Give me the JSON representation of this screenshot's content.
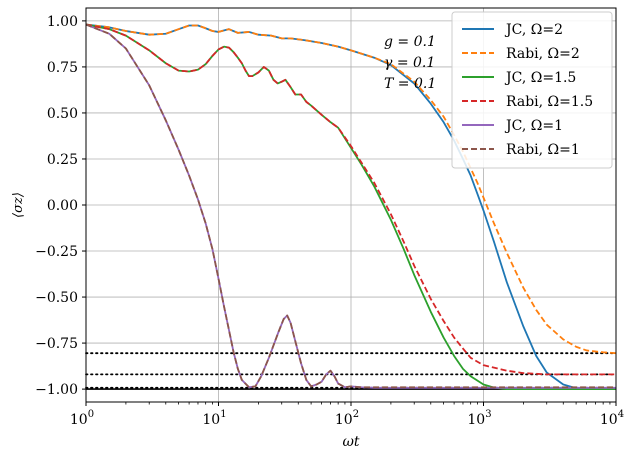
{
  "chart_data": {
    "type": "line",
    "xlabel": "ωt",
    "ylabel": "⟨σz⟩",
    "xscale": "log",
    "xlim": [
      1,
      10000
    ],
    "ylim": [
      -1.07,
      1.07
    ],
    "grid": true,
    "legend_position": "top-right",
    "x_ticks": [
      {
        "value": 1,
        "base": "10",
        "exp": "0"
      },
      {
        "value": 10,
        "base": "10",
        "exp": "1"
      },
      {
        "value": 100,
        "base": "10",
        "exp": "2"
      },
      {
        "value": 1000,
        "base": "10",
        "exp": "3"
      },
      {
        "value": 10000,
        "base": "10",
        "exp": "4"
      }
    ],
    "y_ticks": [
      {
        "value": 1.0,
        "label": "1.00"
      },
      {
        "value": 0.75,
        "label": "0.75"
      },
      {
        "value": 0.5,
        "label": "0.50"
      },
      {
        "value": 0.25,
        "label": "0.25"
      },
      {
        "value": 0.0,
        "label": "0.00"
      },
      {
        "value": -0.25,
        "label": "−0.25"
      },
      {
        "value": -0.5,
        "label": "−0.50"
      },
      {
        "value": -0.75,
        "label": "−0.75"
      },
      {
        "value": -1.0,
        "label": "−1.00"
      }
    ],
    "annotations": [
      "g = 0.1",
      "γ = 0.1",
      "T = 0.1"
    ],
    "reference_lines": [
      {
        "y": -0.805,
        "style": "dotted",
        "color": "#000000"
      },
      {
        "y": -0.92,
        "style": "dotted",
        "color": "#000000"
      },
      {
        "y": -0.993,
        "style": "dotted",
        "color": "#000000"
      },
      {
        "y": -1.0,
        "style": "solid",
        "color": "#000000"
      }
    ],
    "series": [
      {
        "name": "JC, Ω=2",
        "color": "#1f77b4",
        "dash": "solid",
        "points": [
          [
            1,
            0.98
          ],
          [
            1.5,
            0.965
          ],
          [
            2,
            0.945
          ],
          [
            3,
            0.925
          ],
          [
            4,
            0.93
          ],
          [
            5,
            0.955
          ],
          [
            6,
            0.975
          ],
          [
            7,
            0.975
          ],
          [
            8,
            0.96
          ],
          [
            9,
            0.945
          ],
          [
            10,
            0.94
          ],
          [
            12,
            0.955
          ],
          [
            14,
            0.935
          ],
          [
            17,
            0.94
          ],
          [
            20,
            0.925
          ],
          [
            25,
            0.92
          ],
          [
            30,
            0.905
          ],
          [
            35,
            0.905
          ],
          [
            45,
            0.895
          ],
          [
            60,
            0.88
          ],
          [
            80,
            0.86
          ],
          [
            100,
            0.84
          ],
          [
            150,
            0.8
          ],
          [
            200,
            0.76
          ],
          [
            300,
            0.66
          ],
          [
            400,
            0.55
          ],
          [
            500,
            0.45
          ],
          [
            600,
            0.35
          ],
          [
            700,
            0.25
          ],
          [
            800,
            0.16
          ],
          [
            900,
            0.06
          ],
          [
            1000,
            -0.03
          ],
          [
            1200,
            -0.2
          ],
          [
            1500,
            -0.42
          ],
          [
            2000,
            -0.66
          ],
          [
            2500,
            -0.82
          ],
          [
            3000,
            -0.91
          ],
          [
            4000,
            -0.975
          ],
          [
            5000,
            -0.995
          ],
          [
            6000,
            -1.0
          ],
          [
            10000,
            -1.0
          ]
        ]
      },
      {
        "name": "Rabi, Ω=2",
        "color": "#ff7f0e",
        "dash": "dashed",
        "points": [
          [
            1,
            0.98
          ],
          [
            1.5,
            0.965
          ],
          [
            2,
            0.945
          ],
          [
            3,
            0.925
          ],
          [
            4,
            0.93
          ],
          [
            5,
            0.955
          ],
          [
            6,
            0.975
          ],
          [
            7,
            0.975
          ],
          [
            8,
            0.96
          ],
          [
            9,
            0.945
          ],
          [
            10,
            0.94
          ],
          [
            12,
            0.955
          ],
          [
            14,
            0.935
          ],
          [
            17,
            0.94
          ],
          [
            20,
            0.925
          ],
          [
            25,
            0.92
          ],
          [
            30,
            0.905
          ],
          [
            35,
            0.905
          ],
          [
            45,
            0.895
          ],
          [
            60,
            0.88
          ],
          [
            80,
            0.86
          ],
          [
            100,
            0.84
          ],
          [
            150,
            0.8
          ],
          [
            200,
            0.765
          ],
          [
            300,
            0.67
          ],
          [
            400,
            0.57
          ],
          [
            500,
            0.48
          ],
          [
            600,
            0.38
          ],
          [
            700,
            0.29
          ],
          [
            800,
            0.2
          ],
          [
            900,
            0.12
          ],
          [
            1000,
            0.04
          ],
          [
            1200,
            -0.1
          ],
          [
            1500,
            -0.26
          ],
          [
            2000,
            -0.45
          ],
          [
            2500,
            -0.57
          ],
          [
            3000,
            -0.65
          ],
          [
            4000,
            -0.73
          ],
          [
            5000,
            -0.77
          ],
          [
            6000,
            -0.79
          ],
          [
            8000,
            -0.8
          ],
          [
            10000,
            -0.805
          ]
        ]
      },
      {
        "name": "JC, Ω=1.5",
        "color": "#2ca02c",
        "dash": "solid",
        "points": [
          [
            1,
            0.98
          ],
          [
            1.5,
            0.955
          ],
          [
            2,
            0.92
          ],
          [
            3,
            0.84
          ],
          [
            4,
            0.77
          ],
          [
            5,
            0.73
          ],
          [
            6,
            0.725
          ],
          [
            7,
            0.735
          ],
          [
            8,
            0.765
          ],
          [
            9,
            0.81
          ],
          [
            10,
            0.845
          ],
          [
            11,
            0.86
          ],
          [
            12,
            0.855
          ],
          [
            13,
            0.83
          ],
          [
            14,
            0.8
          ],
          [
            15,
            0.77
          ],
          [
            16,
            0.73
          ],
          [
            17,
            0.7
          ],
          [
            18,
            0.7
          ],
          [
            20,
            0.72
          ],
          [
            22,
            0.75
          ],
          [
            24,
            0.73
          ],
          [
            26,
            0.68
          ],
          [
            28,
            0.66
          ],
          [
            30,
            0.67
          ],
          [
            32,
            0.68
          ],
          [
            35,
            0.64
          ],
          [
            38,
            0.6
          ],
          [
            42,
            0.6
          ],
          [
            46,
            0.56
          ],
          [
            50,
            0.54
          ],
          [
            60,
            0.49
          ],
          [
            70,
            0.45
          ],
          [
            80,
            0.42
          ],
          [
            100,
            0.31
          ],
          [
            120,
            0.22
          ],
          [
            150,
            0.1
          ],
          [
            200,
            -0.08
          ],
          [
            250,
            -0.24
          ],
          [
            300,
            -0.38
          ],
          [
            400,
            -0.58
          ],
          [
            500,
            -0.72
          ],
          [
            600,
            -0.82
          ],
          [
            700,
            -0.89
          ],
          [
            800,
            -0.93
          ],
          [
            1000,
            -0.975
          ],
          [
            1200,
            -0.992
          ],
          [
            1500,
            -1.0
          ],
          [
            10000,
            -1.0
          ]
        ]
      },
      {
        "name": "Rabi, Ω=1.5",
        "color": "#d62728",
        "dash": "dashed",
        "points": [
          [
            1,
            0.98
          ],
          [
            1.5,
            0.955
          ],
          [
            2,
            0.92
          ],
          [
            3,
            0.84
          ],
          [
            4,
            0.77
          ],
          [
            5,
            0.73
          ],
          [
            6,
            0.725
          ],
          [
            7,
            0.735
          ],
          [
            8,
            0.765
          ],
          [
            9,
            0.81
          ],
          [
            10,
            0.845
          ],
          [
            11,
            0.86
          ],
          [
            12,
            0.855
          ],
          [
            13,
            0.83
          ],
          [
            14,
            0.8
          ],
          [
            15,
            0.77
          ],
          [
            16,
            0.73
          ],
          [
            17,
            0.7
          ],
          [
            18,
            0.7
          ],
          [
            20,
            0.72
          ],
          [
            22,
            0.75
          ],
          [
            24,
            0.73
          ],
          [
            26,
            0.68
          ],
          [
            28,
            0.66
          ],
          [
            30,
            0.67
          ],
          [
            32,
            0.68
          ],
          [
            35,
            0.64
          ],
          [
            38,
            0.6
          ],
          [
            42,
            0.6
          ],
          [
            46,
            0.56
          ],
          [
            50,
            0.54
          ],
          [
            60,
            0.49
          ],
          [
            70,
            0.45
          ],
          [
            80,
            0.42
          ],
          [
            100,
            0.32
          ],
          [
            120,
            0.23
          ],
          [
            150,
            0.12
          ],
          [
            200,
            -0.05
          ],
          [
            250,
            -0.2
          ],
          [
            300,
            -0.33
          ],
          [
            400,
            -0.51
          ],
          [
            500,
            -0.63
          ],
          [
            600,
            -0.72
          ],
          [
            700,
            -0.78
          ],
          [
            800,
            -0.83
          ],
          [
            1000,
            -0.87
          ],
          [
            1500,
            -0.9
          ],
          [
            2000,
            -0.913
          ],
          [
            3000,
            -0.92
          ],
          [
            10000,
            -0.92
          ]
        ]
      },
      {
        "name": "JC, Ω=1",
        "color": "#9467bd",
        "dash": "solid",
        "points": [
          [
            1,
            0.98
          ],
          [
            1.5,
            0.93
          ],
          [
            2,
            0.85
          ],
          [
            3,
            0.65
          ],
          [
            4,
            0.46
          ],
          [
            5,
            0.3
          ],
          [
            6,
            0.16
          ],
          [
            7,
            0.03
          ],
          [
            8,
            -0.1
          ],
          [
            9,
            -0.24
          ],
          [
            10,
            -0.4
          ],
          [
            11,
            -0.55
          ],
          [
            12,
            -0.68
          ],
          [
            13,
            -0.8
          ],
          [
            14,
            -0.89
          ],
          [
            15,
            -0.95
          ],
          [
            17,
            -0.99
          ],
          [
            19,
            -0.985
          ],
          [
            21,
            -0.93
          ],
          [
            24,
            -0.83
          ],
          [
            28,
            -0.7
          ],
          [
            31,
            -0.62
          ],
          [
            33,
            -0.6
          ],
          [
            35,
            -0.64
          ],
          [
            38,
            -0.74
          ],
          [
            42,
            -0.86
          ],
          [
            46,
            -0.95
          ],
          [
            50,
            -0.985
          ],
          [
            55,
            -0.975
          ],
          [
            60,
            -0.96
          ],
          [
            65,
            -0.92
          ],
          [
            70,
            -0.9
          ],
          [
            75,
            -0.93
          ],
          [
            80,
            -0.97
          ],
          [
            90,
            -0.99
          ],
          [
            100,
            -0.985
          ],
          [
            120,
            -0.99
          ],
          [
            150,
            -0.993
          ],
          [
            10000,
            -0.993
          ]
        ]
      },
      {
        "name": "Rabi, Ω=1",
        "color": "#8c564b",
        "dash": "dashed",
        "points": [
          [
            1,
            0.98
          ],
          [
            1.5,
            0.93
          ],
          [
            2,
            0.85
          ],
          [
            3,
            0.65
          ],
          [
            4,
            0.46
          ],
          [
            5,
            0.3
          ],
          [
            6,
            0.16
          ],
          [
            7,
            0.03
          ],
          [
            8,
            -0.1
          ],
          [
            9,
            -0.24
          ],
          [
            10,
            -0.4
          ],
          [
            11,
            -0.55
          ],
          [
            12,
            -0.68
          ],
          [
            13,
            -0.8
          ],
          [
            14,
            -0.89
          ],
          [
            15,
            -0.95
          ],
          [
            17,
            -0.99
          ],
          [
            19,
            -0.985
          ],
          [
            21,
            -0.93
          ],
          [
            24,
            -0.83
          ],
          [
            28,
            -0.7
          ],
          [
            31,
            -0.62
          ],
          [
            33,
            -0.6
          ],
          [
            35,
            -0.64
          ],
          [
            38,
            -0.74
          ],
          [
            42,
            -0.86
          ],
          [
            46,
            -0.95
          ],
          [
            50,
            -0.985
          ],
          [
            55,
            -0.975
          ],
          [
            60,
            -0.96
          ],
          [
            65,
            -0.92
          ],
          [
            70,
            -0.9
          ],
          [
            75,
            -0.93
          ],
          [
            80,
            -0.97
          ],
          [
            90,
            -0.99
          ],
          [
            100,
            -0.985
          ],
          [
            120,
            -0.99
          ],
          [
            150,
            -0.99
          ],
          [
            10000,
            -0.99
          ]
        ]
      }
    ]
  }
}
